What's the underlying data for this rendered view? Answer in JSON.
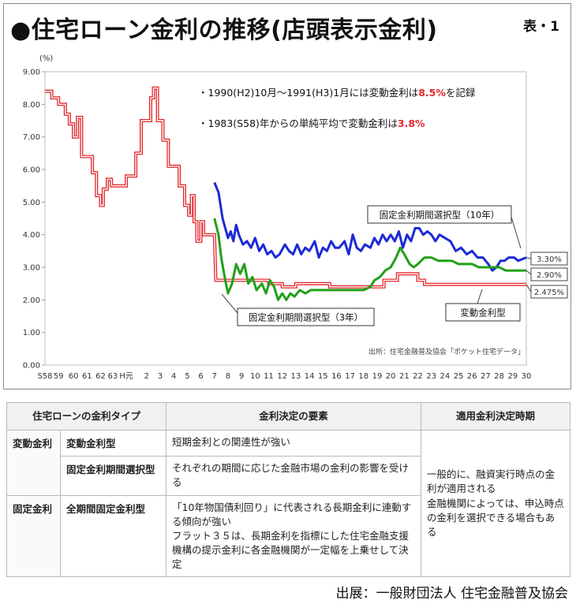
{
  "title": "●住宅ローン金利の推移(店頭表示金利)",
  "table_no": "表・1",
  "chart_data": {
    "type": "line",
    "yunit": "(%)",
    "ylim": [
      0,
      9
    ],
    "yticks": [
      "0.00",
      "1.00",
      "2.00",
      "3.00",
      "4.00",
      "5.00",
      "6.00",
      "7.00",
      "8.00",
      "9.00"
    ],
    "xlim": [
      58.5,
      92.5
    ],
    "xticks": [
      {
        "label": "S58",
        "x": 58.5
      },
      {
        "label": "59",
        "x": 59.5
      },
      {
        "label": "60",
        "x": 60.6
      },
      {
        "label": "61",
        "x": 61.6
      },
      {
        "label": "62",
        "x": 62.6
      },
      {
        "label": "63",
        "x": 63.5
      },
      {
        "label": "H元",
        "x": 64.5
      },
      {
        "label": "2",
        "x": 66
      },
      {
        "label": "3",
        "x": 67
      },
      {
        "label": "4",
        "x": 68
      },
      {
        "label": "5",
        "x": 69
      },
      {
        "label": "6",
        "x": 70
      },
      {
        "label": "7",
        "x": 71
      },
      {
        "label": "8",
        "x": 72
      },
      {
        "label": "9",
        "x": 73
      },
      {
        "label": "10",
        "x": 74
      },
      {
        "label": "11",
        "x": 75
      },
      {
        "label": "12",
        "x": 76
      },
      {
        "label": "13",
        "x": 77
      },
      {
        "label": "14",
        "x": 78
      },
      {
        "label": "15",
        "x": 79
      },
      {
        "label": "16",
        "x": 80
      },
      {
        "label": "17",
        "x": 81
      },
      {
        "label": "18",
        "x": 82
      },
      {
        "label": "19",
        "x": 83
      },
      {
        "label": "20",
        "x": 84
      },
      {
        "label": "21",
        "x": 85
      },
      {
        "label": "22",
        "x": 86
      },
      {
        "label": "23",
        "x": 87
      },
      {
        "label": "24",
        "x": 88
      },
      {
        "label": "25",
        "x": 89
      },
      {
        "label": "26",
        "x": 90
      },
      {
        "label": "27",
        "x": 91
      },
      {
        "label": "28",
        "x": 92
      },
      {
        "label": "29",
        "x": 93
      },
      {
        "label": "30",
        "x": 94
      }
    ],
    "series": [
      {
        "name": "変動金利型",
        "color": "#e3262b",
        "style": "double",
        "points": [
          [
            58.5,
            8.4
          ],
          [
            59,
            8.4
          ],
          [
            59,
            8.2
          ],
          [
            59.5,
            8.2
          ],
          [
            59.5,
            8.0
          ],
          [
            60,
            8.0
          ],
          [
            60,
            7.7
          ],
          [
            60.3,
            7.7
          ],
          [
            60.3,
            7.4
          ],
          [
            60.6,
            7.4
          ],
          [
            60.6,
            7.0
          ],
          [
            60.9,
            7.0
          ],
          [
            60.9,
            7.6
          ],
          [
            61.2,
            7.6
          ],
          [
            61.2,
            6.4
          ],
          [
            62,
            6.4
          ],
          [
            62,
            5.9
          ],
          [
            62.3,
            5.9
          ],
          [
            62.3,
            5.2
          ],
          [
            62.6,
            5.2
          ],
          [
            62.6,
            4.9
          ],
          [
            62.8,
            4.9
          ],
          [
            62.8,
            5.4
          ],
          [
            63.1,
            5.4
          ],
          [
            63.1,
            5.7
          ],
          [
            63.4,
            5.7
          ],
          [
            63.4,
            5.5
          ],
          [
            64.5,
            5.5
          ],
          [
            64.5,
            5.8
          ],
          [
            65.2,
            5.8
          ],
          [
            65.2,
            6.5
          ],
          [
            65.6,
            6.5
          ],
          [
            65.6,
            7.5
          ],
          [
            66.3,
            7.5
          ],
          [
            66.3,
            8.2
          ],
          [
            66.5,
            8.2
          ],
          [
            66.5,
            8.5
          ],
          [
            66.8,
            8.5
          ],
          [
            66.8,
            7.5
          ],
          [
            67.2,
            7.5
          ],
          [
            67.2,
            6.9
          ],
          [
            67.6,
            6.9
          ],
          [
            67.6,
            6.1
          ],
          [
            68.4,
            6.1
          ],
          [
            68.4,
            5.5
          ],
          [
            68.8,
            5.5
          ],
          [
            68.8,
            4.9
          ],
          [
            69.1,
            4.9
          ],
          [
            69.1,
            4.6
          ],
          [
            69.3,
            4.6
          ],
          [
            69.3,
            5.2
          ],
          [
            69.5,
            5.2
          ],
          [
            69.5,
            4.4
          ],
          [
            69.7,
            4.4
          ],
          [
            69.7,
            3.8
          ],
          [
            70,
            3.8
          ],
          [
            70,
            4.4
          ],
          [
            70.2,
            4.4
          ],
          [
            70.2,
            4.0
          ],
          [
            70.5,
            4.0
          ],
          [
            70.5,
            4.0
          ],
          [
            71,
            4.0
          ],
          [
            71.1,
            2.6
          ],
          [
            75,
            2.6
          ],
          [
            75,
            2.5
          ],
          [
            76,
            2.5
          ],
          [
            76,
            2.4
          ],
          [
            77,
            2.4
          ],
          [
            77,
            2.5
          ],
          [
            79.5,
            2.5
          ],
          [
            79.5,
            2.4
          ],
          [
            83.5,
            2.4
          ],
          [
            83.5,
            2.6
          ],
          [
            84.5,
            2.6
          ],
          [
            84.5,
            2.8
          ],
          [
            86,
            2.8
          ],
          [
            86,
            2.6
          ],
          [
            86.5,
            2.6
          ],
          [
            86.5,
            2.475
          ],
          [
            94,
            2.475
          ]
        ]
      },
      {
        "name": "固定金利期間選択型（10年）",
        "color": "#1c2ad6",
        "style": "solid",
        "points": [
          [
            71,
            5.6
          ],
          [
            71.3,
            5.3
          ],
          [
            71.6,
            4.5
          ],
          [
            71.8,
            4.2
          ],
          [
            72,
            3.9
          ],
          [
            72.2,
            4.1
          ],
          [
            72.4,
            3.8
          ],
          [
            72.6,
            4.3
          ],
          [
            72.8,
            4.0
          ],
          [
            73.1,
            3.7
          ],
          [
            73.4,
            3.8
          ],
          [
            73.7,
            3.6
          ],
          [
            74,
            3.9
          ],
          [
            74.3,
            3.5
          ],
          [
            74.6,
            3.7
          ],
          [
            74.9,
            3.4
          ],
          [
            75.2,
            3.5
          ],
          [
            75.5,
            3.3
          ],
          [
            75.8,
            3.4
          ],
          [
            76.2,
            3.7
          ],
          [
            76.5,
            3.5
          ],
          [
            76.8,
            3.4
          ],
          [
            77.1,
            3.7
          ],
          [
            77.4,
            3.4
          ],
          [
            77.7,
            3.6
          ],
          [
            78,
            3.5
          ],
          [
            78.4,
            3.8
          ],
          [
            78.7,
            3.3
          ],
          [
            79,
            3.6
          ],
          [
            79.3,
            3.5
          ],
          [
            79.6,
            3.8
          ],
          [
            79.9,
            3.6
          ],
          [
            80.2,
            3.6
          ],
          [
            80.6,
            3.8
          ],
          [
            80.9,
            3.4
          ],
          [
            81.2,
            4.0
          ],
          [
            81.5,
            3.6
          ],
          [
            81.8,
            3.5
          ],
          [
            82.1,
            3.7
          ],
          [
            82.5,
            3.6
          ],
          [
            82.8,
            3.9
          ],
          [
            83.1,
            3.7
          ],
          [
            83.4,
            4.0
          ],
          [
            83.7,
            3.8
          ],
          [
            84,
            4.0
          ],
          [
            84.3,
            3.8
          ],
          [
            84.6,
            4.1
          ],
          [
            84.9,
            3.6
          ],
          [
            85.2,
            4.0
          ],
          [
            85.5,
            3.8
          ],
          [
            85.8,
            4.2
          ],
          [
            86.1,
            4.2
          ],
          [
            86.4,
            4.0
          ],
          [
            86.7,
            4.1
          ],
          [
            87,
            4.0
          ],
          [
            87.3,
            3.8
          ],
          [
            87.6,
            4.0
          ],
          [
            88,
            3.9
          ],
          [
            88.4,
            3.8
          ],
          [
            88.8,
            3.5
          ],
          [
            89.2,
            3.6
          ],
          [
            89.6,
            3.4
          ],
          [
            90,
            3.5
          ],
          [
            90.4,
            3.3
          ],
          [
            90.8,
            3.3
          ],
          [
            91.2,
            3.1
          ],
          [
            91.5,
            2.9
          ],
          [
            91.8,
            3.0
          ],
          [
            92.1,
            3.2
          ],
          [
            92.4,
            3.2
          ],
          [
            92.7,
            3.3
          ],
          [
            93.1,
            3.3
          ],
          [
            93.4,
            3.2
          ],
          [
            94,
            3.3
          ]
        ]
      },
      {
        "name": "固定金利期間選択型（3年）",
        "color": "#21a017",
        "style": "solid",
        "points": [
          [
            71,
            4.5
          ],
          [
            71.3,
            4.0
          ],
          [
            71.5,
            3.3
          ],
          [
            71.8,
            2.6
          ],
          [
            72,
            2.2
          ],
          [
            72.3,
            2.5
          ],
          [
            72.6,
            3.1
          ],
          [
            72.9,
            2.8
          ],
          [
            73.2,
            3.1
          ],
          [
            73.5,
            2.5
          ],
          [
            73.8,
            2.7
          ],
          [
            74.1,
            2.3
          ],
          [
            74.5,
            2.5
          ],
          [
            74.8,
            2.2
          ],
          [
            75.1,
            2.6
          ],
          [
            75.4,
            2.4
          ],
          [
            75.7,
            2.0
          ],
          [
            76,
            2.2
          ],
          [
            76.3,
            2.0
          ],
          [
            76.6,
            2.2
          ],
          [
            76.9,
            2.1
          ],
          [
            77.3,
            2.3
          ],
          [
            77.7,
            2.2
          ],
          [
            78.1,
            2.3
          ],
          [
            79,
            2.3
          ],
          [
            80,
            2.3
          ],
          [
            81,
            2.3
          ],
          [
            82,
            2.3
          ],
          [
            82.5,
            2.4
          ],
          [
            82.8,
            2.6
          ],
          [
            83.2,
            2.7
          ],
          [
            83.6,
            2.9
          ],
          [
            84,
            3.0
          ],
          [
            84.4,
            3.3
          ],
          [
            84.7,
            3.6
          ],
          [
            85,
            3.4
          ],
          [
            85.4,
            3.1
          ],
          [
            85.7,
            3.0
          ],
          [
            86,
            3.1
          ],
          [
            86.5,
            3.3
          ],
          [
            87,
            3.3
          ],
          [
            87.5,
            3.2
          ],
          [
            88,
            3.2
          ],
          [
            88.5,
            3.2
          ],
          [
            89,
            3.1
          ],
          [
            89.5,
            3.1
          ],
          [
            90,
            3.1
          ],
          [
            90.5,
            3.0
          ],
          [
            91,
            3.0
          ],
          [
            91.5,
            3.0
          ],
          [
            92,
            3.0
          ],
          [
            92.5,
            2.9
          ],
          [
            93,
            2.9
          ],
          [
            94,
            2.9
          ]
        ]
      }
    ],
    "end_labels": [
      "3.30%",
      "2.90%",
      "2.475%"
    ],
    "annotations": {
      "note1": {
        "pre": "・1990(H2)10月〜1991(H3)1月には変動金利は",
        "hl": "8.5%",
        "post": "を記録"
      },
      "note2": {
        "pre": "・1983(S58)年からの単純平均で変動金利は",
        "hl": "3.8%",
        "post": ""
      }
    },
    "callouts": {
      "fixed10": "固定金利期間選択型（10年）",
      "fixed3": "固定金利期間選択型（3年）",
      "variable": "変動金利型"
    },
    "source_note": "出所：住宅金融普及協会「ポケット住宅データ」"
  },
  "table": {
    "headers": [
      "住宅ローンの金利タイプ",
      "金利決定の要素",
      "適用金利決定時期"
    ],
    "rows": [
      {
        "category": "変動金利",
        "type": "変動金利型",
        "factor": "短期金利との関連性が強い"
      },
      {
        "category": "",
        "type": "固定金利期間選択型",
        "factor": "それぞれの期間に応じた金融市場の金利の影響を受ける"
      },
      {
        "category": "固定金利",
        "type": "全期間固定金利型",
        "factor": "「10年物国債利回り」に代表される長期金利に連動する傾向が強い\nフラット３５は、長期金利を指標にした住宅金融支援機構の提示金利に各金融機関が一定幅を上乗せして決定"
      }
    ],
    "timing": "一般的に、融資実行時点の金利が適用される\n金融機関によっては、申込時点の金利を選択できる場合もある"
  },
  "source_credit": "出展：一般財団法人 住宅金融普及協会"
}
